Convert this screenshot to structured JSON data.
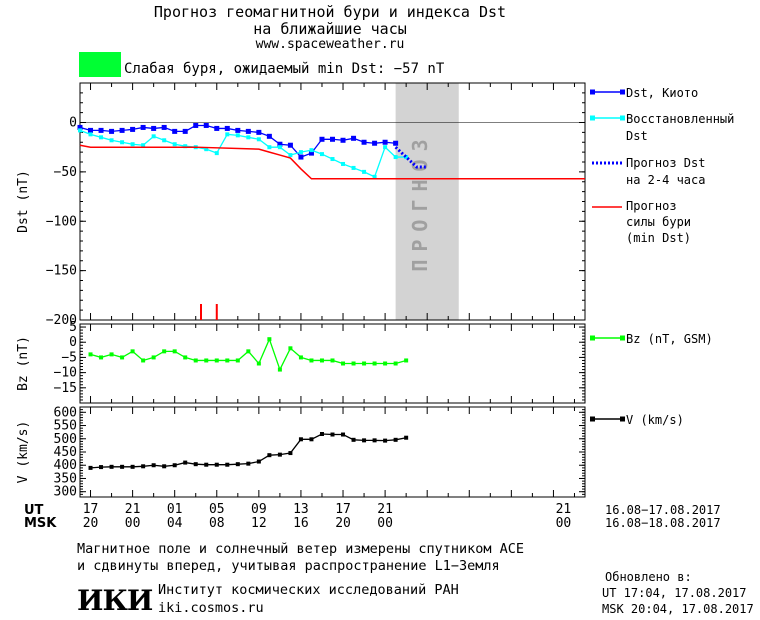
{
  "header": {
    "title_line1": "Прогноз геомагнитной бури и индекса Dst",
    "title_line2": "на ближайшие часы",
    "site": "www.spaceweather.ru",
    "status_color": "#00ff33",
    "status_text": "Слабая буря, ожидаемый min Dst: −57 nT"
  },
  "legend": {
    "dst_kyoto": "Dst, Киото",
    "restored_line1": "Восстановленный",
    "restored_line2": "Dst",
    "forecast_line1": "Прогноз Dst",
    "forecast_line2": "на 2-4 часа",
    "storm_line1": "Прогноз",
    "storm_line2": "силы бури",
    "storm_line3": "(min Dst)",
    "bz": "Bz (nT, GSM)",
    "v": "V (km/s)"
  },
  "time_axis": {
    "ut_label": "UT",
    "msk_label": "MSK",
    "ut_ticks": [
      "17",
      "21",
      "01",
      "05",
      "09",
      "13",
      "17",
      "21"
    ],
    "msk_ticks": [
      "20",
      "00",
      "04",
      "08",
      "12",
      "16",
      "20",
      "00"
    ],
    "ut_range": "16.08−17.08.2017",
    "msk_range": "16.08−18.08.2017"
  },
  "forecast_zone": {
    "label": "прогноз",
    "color": "#d3d3d3"
  },
  "footer": {
    "note_line1": "Магнитное поле и солнечный ветер измерены спутником ACE",
    "note_line2": "и сдвинуты вперед, учитывая распространение L1−Земля",
    "logo": "ИКИ",
    "institute": "Институт космических исследований РАН",
    "institute_site": "iki.cosmos.ru",
    "updated_label": "Обновлено в:",
    "updated_ut": "UT  17:04, 17.08.2017",
    "updated_msk": "MSK 20:04, 17.08.2017"
  },
  "chart_data": [
    {
      "type": "line",
      "panel": "dst",
      "ylabel": "Dst (nT)",
      "ylim": [
        -200,
        40
      ],
      "yticks": [
        0,
        -50,
        -100,
        -150,
        -200
      ],
      "xlim": [
        16,
        64
      ],
      "series": [
        {
          "name": "Dst, Киото",
          "color": "#0000ff",
          "x": [
            16,
            17,
            18,
            19,
            20,
            21,
            22,
            23,
            24,
            25,
            26,
            27,
            28,
            29,
            30,
            31,
            32,
            33,
            34,
            35,
            36,
            37,
            38,
            39,
            40,
            41,
            42,
            43,
            44,
            45,
            46
          ],
          "y": [
            -5,
            -8,
            -8,
            -9,
            -8,
            -7,
            -5,
            -6,
            -5,
            -9,
            -9,
            -3,
            -3,
            -6,
            -6,
            -8,
            -9,
            -10,
            -14,
            -22,
            -23,
            -35,
            -31,
            -17,
            -17,
            -18,
            -16,
            -20,
            -21,
            -20,
            -21
          ]
        },
        {
          "name": "Восстановленный Dst",
          "color": "#00ffff",
          "x": [
            16,
            17,
            18,
            19,
            20,
            21,
            22,
            23,
            24,
            25,
            26,
            27,
            28,
            29,
            30,
            31,
            32,
            33,
            34,
            35,
            36,
            37,
            38,
            39,
            40,
            41,
            42,
            43,
            44,
            45,
            46,
            47
          ],
          "y": [
            -8,
            -12,
            -15,
            -18,
            -20,
            -22,
            -23,
            -14,
            -18,
            -22,
            -24,
            -25,
            -27,
            -31,
            -12,
            -13,
            -15,
            -17,
            -25,
            -25,
            -33,
            -30,
            -28,
            -32,
            -37,
            -42,
            -46,
            -50,
            -55,
            -25,
            -35,
            -35
          ]
        },
        {
          "name": "Прогноз Dst на 2-4 часа",
          "color": "#0000ff",
          "dotted": true,
          "x": [
            46,
            47,
            48,
            49
          ],
          "y": [
            -25,
            -35,
            -45,
            -45
          ]
        },
        {
          "name": "Прогноз силы бури (min Dst)",
          "color": "#ff0000",
          "x": [
            16,
            17,
            27,
            33,
            34,
            35,
            36,
            37,
            38,
            64
          ],
          "y": [
            -23,
            -25,
            -25,
            -27,
            -30,
            -33,
            -36,
            -47,
            -57,
            -57
          ]
        }
      ],
      "storm_markers_x": [
        27.5,
        29
      ],
      "forecast_zone_x": [
        46,
        52
      ]
    },
    {
      "type": "line",
      "panel": "bz",
      "ylabel": "Bz (nT)",
      "ylim": [
        -20,
        6
      ],
      "yticks": [
        5,
        0,
        -5,
        -10,
        -15
      ],
      "series": [
        {
          "name": "Bz (nT, GSM)",
          "color": "#00ff00",
          "x": [
            17,
            18,
            19,
            20,
            21,
            22,
            23,
            24,
            25,
            26,
            27,
            28,
            29,
            30,
            31,
            32,
            33,
            34,
            35,
            36,
            37,
            38,
            39,
            40,
            41,
            42,
            43,
            44,
            45,
            46,
            47
          ],
          "y": [
            -4,
            -5,
            -4,
            -5,
            -3,
            -6,
            -5,
            -3,
            -3,
            -5,
            -6,
            -6,
            -6,
            -6,
            -6,
            -3,
            -7,
            1,
            -9,
            -2,
            -5,
            -6,
            -6,
            -6,
            -7,
            -7,
            -7,
            -7,
            -7,
            -7,
            -6
          ]
        }
      ]
    },
    {
      "type": "line",
      "panel": "v",
      "ylabel": "V (km/s)",
      "ylim": [
        280,
        620
      ],
      "yticks": [
        600,
        550,
        500,
        450,
        400,
        350,
        300
      ],
      "series": [
        {
          "name": "V (km/s)",
          "color": "#000000",
          "x": [
            17,
            18,
            19,
            20,
            21,
            22,
            23,
            24,
            25,
            26,
            27,
            28,
            29,
            30,
            31,
            32,
            33,
            34,
            35,
            36,
            37,
            38,
            39,
            40,
            41,
            42,
            43,
            44,
            45,
            46,
            47
          ],
          "y": [
            390,
            393,
            394,
            394,
            394,
            396,
            400,
            396,
            400,
            410,
            404,
            402,
            402,
            402,
            404,
            406,
            414,
            438,
            440,
            446,
            498,
            498,
            518,
            516,
            516,
            496,
            494,
            494,
            493,
            496,
            504
          ]
        }
      ]
    }
  ]
}
